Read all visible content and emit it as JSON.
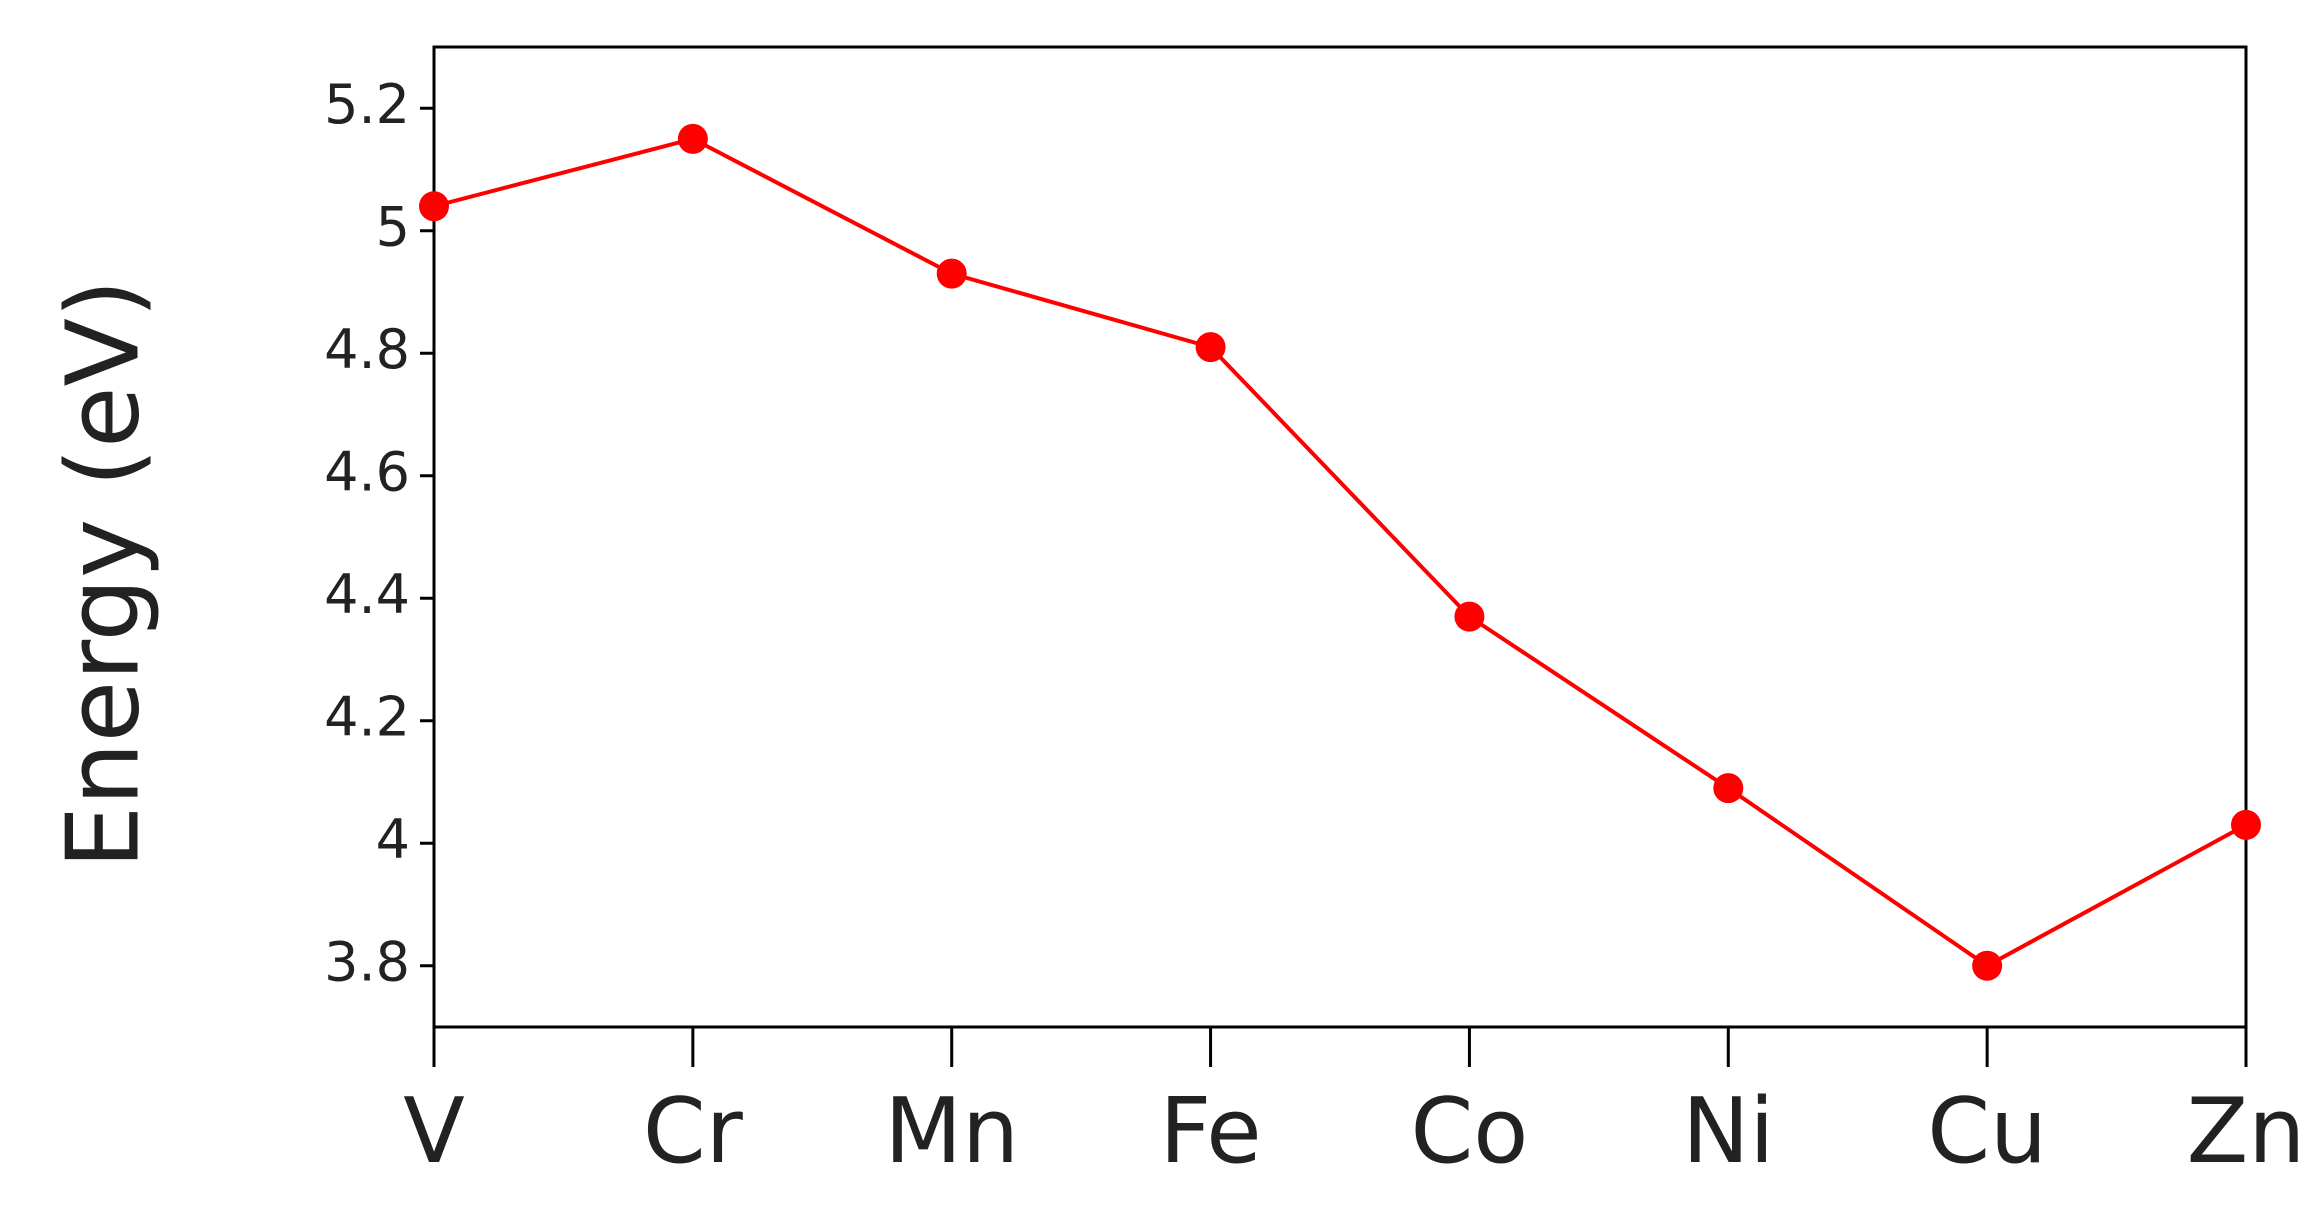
{
  "chart_data": {
    "type": "line",
    "y_label": "Energy (eV)",
    "categories": [
      "V",
      "Cr",
      "Mn",
      "Fe",
      "Co",
      "Ni",
      "Cu",
      "Zn"
    ],
    "values": [
      5.04,
      5.15,
      4.93,
      4.81,
      4.37,
      4.09,
      3.8,
      4.03
    ],
    "color": "#ff0000",
    "ylim": [
      3.7,
      5.3
    ],
    "yticks": [
      3.8,
      4.0,
      4.2,
      4.4,
      4.6,
      4.8,
      5.0,
      5.2
    ]
  }
}
